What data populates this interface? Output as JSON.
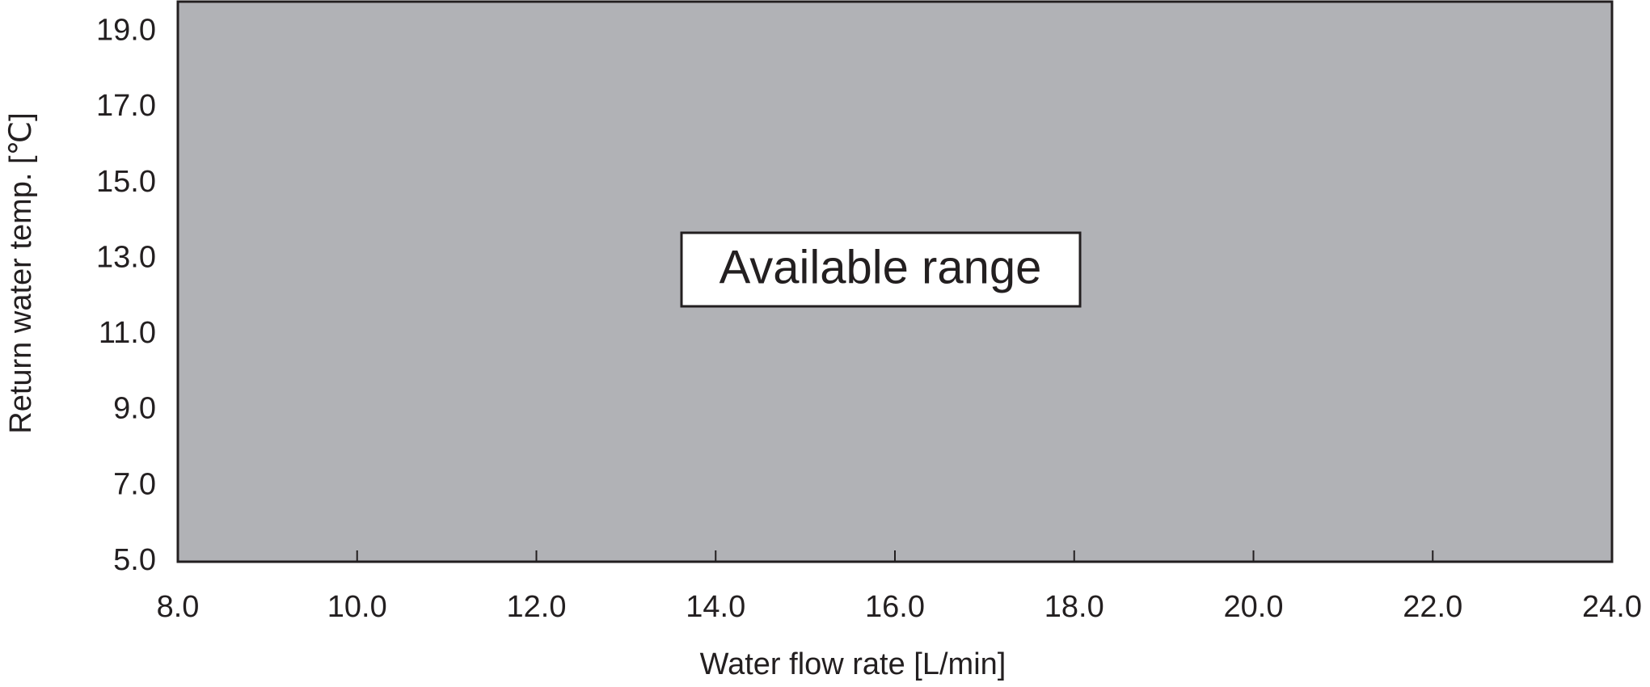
{
  "chart_data": {
    "type": "area",
    "x": [
      8,
      24
    ],
    "values": [
      19.8,
      19.8
    ],
    "color": "#b1b2b6",
    "annotation": "Available range",
    "xlabel": "Water flow rate [L/min]",
    "ylabel": "Return water temp. [℃]",
    "xlim": [
      8,
      24
    ],
    "ylim": [
      5,
      19.8
    ],
    "xticks": [
      {
        "value": 8,
        "label": "8.0"
      },
      {
        "value": 10,
        "label": "10.0"
      },
      {
        "value": 12,
        "label": "12.0"
      },
      {
        "value": 14,
        "label": "14.0"
      },
      {
        "value": 16,
        "label": "16.0"
      },
      {
        "value": 18,
        "label": "18.0"
      },
      {
        "value": 20,
        "label": "20.0"
      },
      {
        "value": 22,
        "label": "22.0"
      },
      {
        "value": 24,
        "label": "24.0"
      }
    ],
    "yticks": [
      {
        "value": 5,
        "label": "5.0"
      },
      {
        "value": 7,
        "label": "7.0"
      },
      {
        "value": 9,
        "label": "9.0"
      },
      {
        "value": 11,
        "label": "11.0"
      },
      {
        "value": 13,
        "label": "13.0"
      },
      {
        "value": 15,
        "label": "15.0"
      },
      {
        "value": 17,
        "label": "17.0"
      },
      {
        "value": 19,
        "label": "19.0"
      }
    ],
    "grid": false
  }
}
